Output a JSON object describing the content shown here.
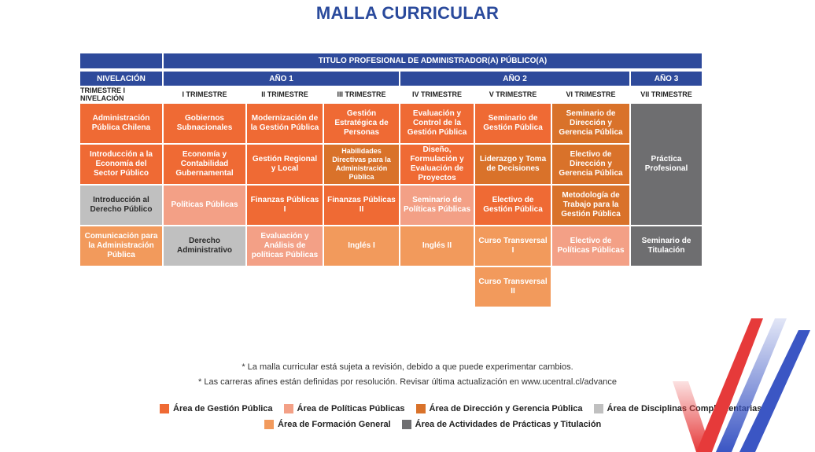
{
  "title": "MALLA CURRICULAR",
  "header": {
    "degree": "TITULO PROFESIONAL DE ADMINISTRADOR(A) PÚBLICO(A)",
    "nivelacion": "NIVELACIÓN",
    "year1": "AÑO 1",
    "year2": "AÑO 2",
    "year3": "AÑO 3"
  },
  "terms": [
    "TRIMESTRE I NIVELACIÓN",
    "I TRIMESTRE",
    "II TRIMESTRE",
    "III TRIMESTRE",
    "IV TRIMESTRE",
    "V TRIMESTRE",
    "VI TRIMESTRE",
    "VII TRIMESTRE"
  ],
  "courses": {
    "c0r0": "Administración Pública Chilena",
    "c0r1": "Introducción a la Economía del Sector Público",
    "c0r2": "Introducción al Derecho Público",
    "c0r3": "Comunicación para la Administración Pública",
    "c1r0": "Gobiernos Subnacionales",
    "c1r1": "Economía y Contabilidad Gubernamental",
    "c1r2": "Políticas Públicas",
    "c1r3": "Derecho Administrativo",
    "c2r0": "Modernización de la Gestión Pública",
    "c2r1": "Gestión Regional y Local",
    "c2r2": "Finanzas Públicas I",
    "c2r3": "Evaluación y Análisis de políticas Públicas",
    "c3r0": "Gestión Estratégica de Personas",
    "c3r1": "Habilidades Directivas para la Administración Pública",
    "c3r2": "Finanzas Públicas II",
    "c3r3": "Inglés I",
    "c4r0": "Evaluación y Control de la Gestión Pública",
    "c4r1": "Diseño, Formulación y Evaluación de Proyectos",
    "c4r2": "Seminario de Políticas Públicas",
    "c4r3": "Inglés II",
    "c5r0": "Seminario de Gestión Pública",
    "c5r1": "Liderazgo y Toma de Decisiones",
    "c5r2": "Electivo de Gestión Pública",
    "c5r3": "Curso Transversal I",
    "c5r4": "Curso Transversal II",
    "c6r0": "Seminario de Dirección y Gerencia Pública",
    "c6r1": "Electivo de Dirección y Gerencia Pública",
    "c6r2": "Metodología de Trabajo para la Gestión Pública",
    "c6r3": "Electivo de Políticas Públicas",
    "c7a": "Práctica Profesional",
    "c7b": "Seminario de Titulación"
  },
  "notes": [
    "* La  malla curricular está sujeta a revisión, debido a que puede experimentar cambios.",
    "* Las carreras afines están definidas por resolución. Revisar última actualización en www.ucentral.cl/advance"
  ],
  "legend": [
    {
      "label": "Área de Gestión Pública",
      "color": "#ef6a34"
    },
    {
      "label": "Área de Políticas Públicas",
      "color": "#f3a086"
    },
    {
      "label": "Área de Dirección y Gerencia Pública",
      "color": "#d9722a"
    },
    {
      "label": "Área de Disciplinas Complementarias",
      "color": "#c0c0c0"
    },
    {
      "label": "Área de Formación General",
      "color": "#f29a5c"
    },
    {
      "label": "Área de Actividades de Prácticas y Titulación",
      "color": "#6e6e70"
    }
  ]
}
